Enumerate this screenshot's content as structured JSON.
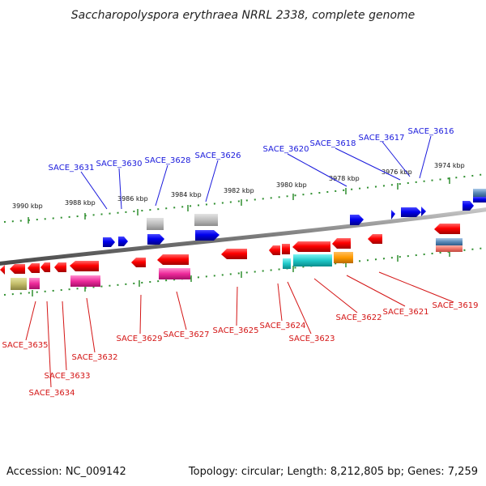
{
  "title": "Saccharopolyspora erythraea NRRL 2338, complete genome",
  "footer": {
    "accession": "Accession: NC_009142",
    "summary": "Topology: circular; Length: 8,212,805 bp; Genes: 7,259"
  },
  "kbp_labels": [
    "3990 kbp",
    "3988 kbp",
    "3986 kbp",
    "3984 kbp",
    "3982 kbp",
    "3980 kbp",
    "3978 kbp",
    "3976 kbp",
    "3974 kbp"
  ],
  "forward_labels": [
    "SACE_3631",
    "SACE_3630",
    "SACE_3628",
    "SACE_3626",
    "SACE_3620",
    "SACE_3618",
    "SACE_3617",
    "SACE_3616"
  ],
  "reverse_labels": [
    "SACE_3635",
    "SACE_3633",
    "SACE_3634",
    "SACE_3632",
    "SACE_3629",
    "SACE_3627",
    "SACE_3625",
    "SACE_3624",
    "SACE_3623",
    "SACE_3622",
    "SACE_3621",
    "SACE_3619"
  ],
  "colors": {
    "forward_label": "#1a1adc",
    "reverse_label": "#d41515",
    "backbone": "#8a8a8a",
    "ticks": "#2f8f2f"
  }
}
